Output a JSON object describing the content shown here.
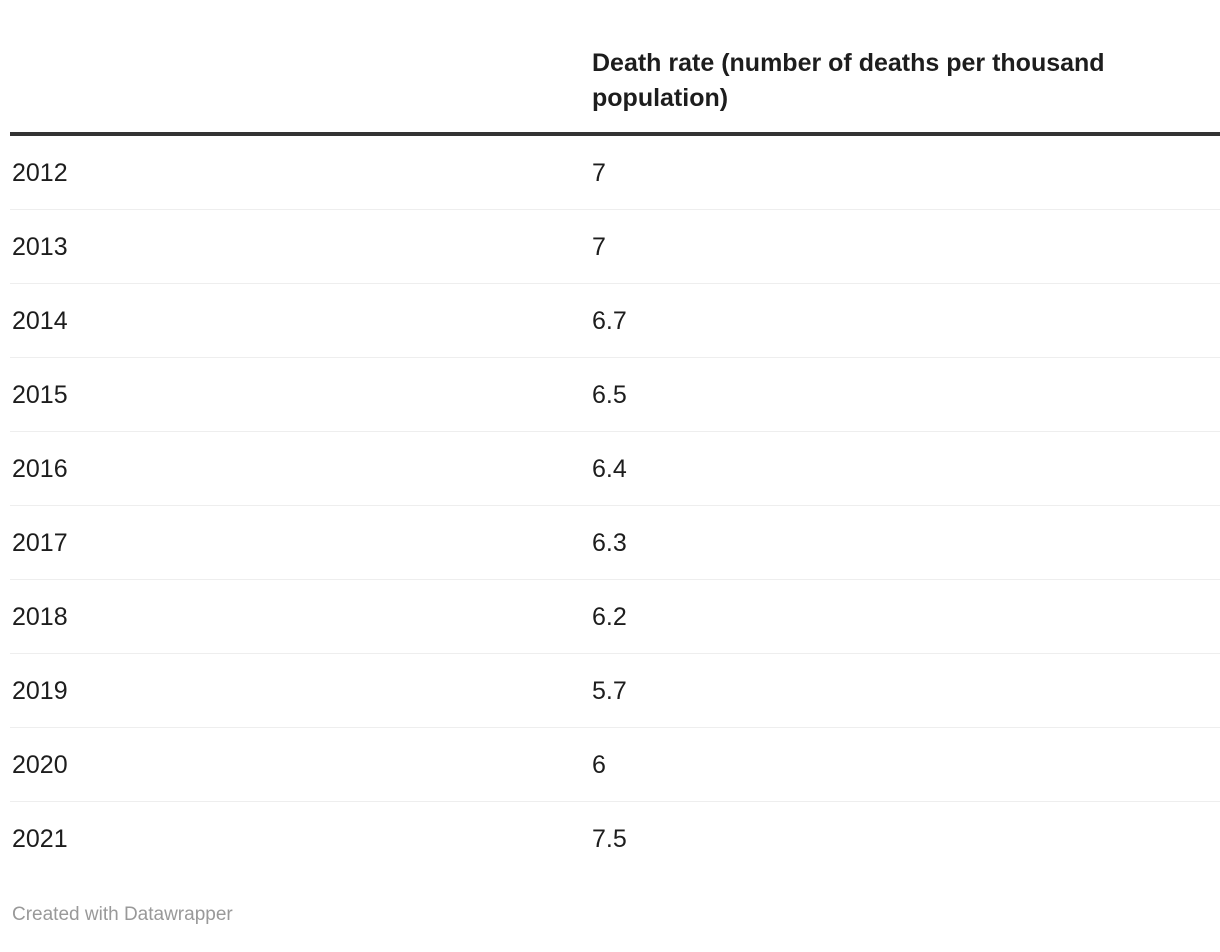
{
  "chart_data": {
    "type": "table",
    "title": "",
    "columns": [
      "",
      "Death rate (number of deaths per thousand population)"
    ],
    "categories": [
      "2012",
      "2013",
      "2014",
      "2015",
      "2016",
      "2017",
      "2018",
      "2019",
      "2020",
      "2021"
    ],
    "values": [
      7,
      7,
      6.7,
      6.5,
      6.4,
      6.3,
      6.2,
      5.7,
      6,
      7.5
    ],
    "legend_position": "none",
    "grid": "row-dividers"
  },
  "table": {
    "header": {
      "year_label": "",
      "value_label": "Death rate (number of deaths per thousand population)"
    },
    "rows": [
      {
        "year": "2012",
        "value": "7"
      },
      {
        "year": "2013",
        "value": "7"
      },
      {
        "year": "2014",
        "value": "6.7"
      },
      {
        "year": "2015",
        "value": "6.5"
      },
      {
        "year": "2016",
        "value": "6.4"
      },
      {
        "year": "2017",
        "value": "6.3"
      },
      {
        "year": "2018",
        "value": "6.2"
      },
      {
        "year": "2019",
        "value": "5.7"
      },
      {
        "year": "2020",
        "value": "6"
      },
      {
        "year": "2021",
        "value": "7.5"
      }
    ]
  },
  "footer": {
    "credit": "Created with Datawrapper"
  },
  "colors": {
    "text": "#1d1d1d",
    "header_rule": "#333333",
    "row_divider": "#eeeeee",
    "credit_text": "#999999",
    "background": "#ffffff"
  }
}
